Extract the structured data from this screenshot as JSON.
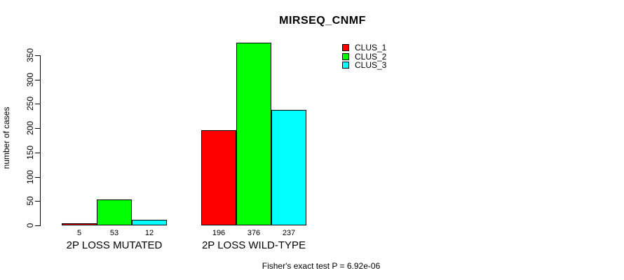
{
  "chart_data": {
    "type": "bar",
    "title": "MIRSEQ_CNMF",
    "ylabel": "number of cases",
    "xlabel": "",
    "categories": [
      "2P LOSS MUTATED",
      "2P LOSS WILD-TYPE"
    ],
    "series": [
      {
        "name": "CLUS_1",
        "color": "#ff0000",
        "values": [
          5,
          196
        ]
      },
      {
        "name": "CLUS_2",
        "color": "#00ff00",
        "values": [
          53,
          376
        ]
      },
      {
        "name": "CLUS_3",
        "color": "#00ffff",
        "values": [
          12,
          237
        ]
      }
    ],
    "bar_value_labels": [
      [
        "5",
        "53",
        "12"
      ],
      [
        "196",
        "376",
        "237"
      ]
    ],
    "yticks": [
      0,
      50,
      100,
      150,
      200,
      250,
      300,
      350
    ],
    "ylim": [
      0,
      380
    ],
    "grid": false,
    "legend_position": "top-right",
    "legend_entries": [
      "CLUS_1",
      "CLUS_2",
      "CLUS_3"
    ],
    "annotation": "Fisher's exact test P = 6.92e-06",
    "axis_color": "#000000",
    "background": "#ffffff"
  }
}
